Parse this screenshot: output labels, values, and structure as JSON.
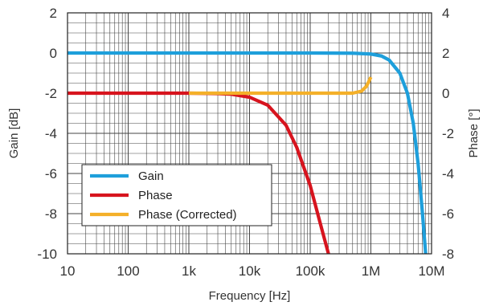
{
  "chart_data": {
    "type": "line",
    "title": "",
    "xlabel": "Frequency [Hz]",
    "ylabel_left": "Gain [dB]",
    "ylabel_right": "Phase [°]",
    "x_scale": "log",
    "xlim": [
      10,
      10000000
    ],
    "ylim_left": [
      -10,
      2
    ],
    "ylim_right": [
      -8,
      4
    ],
    "grid": true,
    "x_ticks": [
      {
        "value": 10,
        "label": "10"
      },
      {
        "value": 100,
        "label": "100"
      },
      {
        "value": 1000,
        "label": "1k"
      },
      {
        "value": 10000,
        "label": "10k"
      },
      {
        "value": 100000,
        "label": "100k"
      },
      {
        "value": 1000000,
        "label": "1M"
      },
      {
        "value": 10000000,
        "label": "10M"
      }
    ],
    "y_ticks_left": [
      "2",
      "0",
      "-2",
      "-4",
      "-6",
      "-8",
      "-10"
    ],
    "y_ticks_right": [
      "4",
      "2",
      "0",
      "-2",
      "-4",
      "-6",
      "-8"
    ],
    "legend_position": "bottom-left",
    "series": [
      {
        "name": "Gain",
        "axis": "left",
        "color": "#1E9FDB",
        "x": [
          10,
          100,
          1000,
          10000,
          100000,
          500000,
          1000000,
          1500000,
          2000000,
          3000000,
          4000000,
          5000000,
          6000000,
          7000000,
          8000000
        ],
        "y": [
          0,
          0,
          0,
          0,
          0,
          -0.01,
          -0.05,
          -0.15,
          -0.35,
          -1.0,
          -2.0,
          -3.5,
          -5.5,
          -7.8,
          -10
        ]
      },
      {
        "name": "Phase",
        "axis": "right",
        "color": "#D7141E",
        "x": [
          10,
          100,
          1000,
          3000,
          5000,
          10000,
          20000,
          40000,
          60000,
          100000,
          150000,
          200000
        ],
        "y": [
          0,
          0,
          0,
          -0.02,
          -0.05,
          -0.2,
          -0.6,
          -1.6,
          -2.7,
          -4.6,
          -6.6,
          -8
        ]
      },
      {
        "name": "Phase (Corrected)",
        "axis": "right",
        "color": "#F4B029",
        "x": [
          1000,
          10000,
          100000,
          500000,
          700000,
          850000,
          1000000
        ],
        "y": [
          0,
          0,
          0,
          0,
          0.1,
          0.35,
          0.8
        ]
      }
    ]
  }
}
